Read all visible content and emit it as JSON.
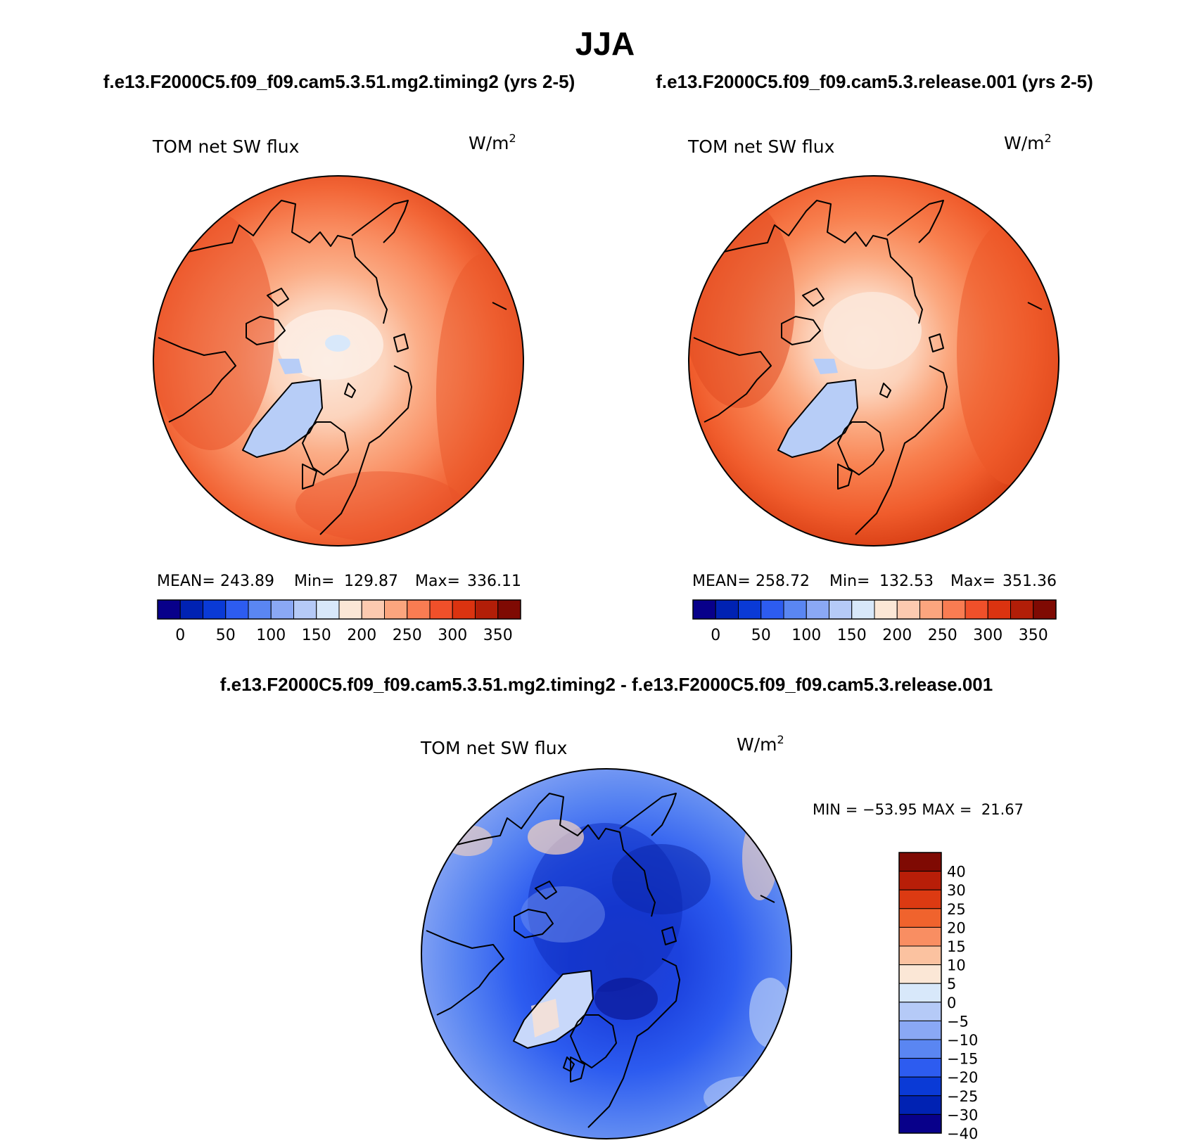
{
  "main_title": "JJA",
  "panel_left": {
    "case_title": "f.e13.F2000C5.f09_f09.cam5.3.51.mg2.timing2 (yrs 2-5)",
    "variable": "TOM net SW flux",
    "units_base": "W/m",
    "units_exp": "2",
    "stats": {
      "mean_label": "MEAN=",
      "mean": "243.89",
      "min_label": "Min=",
      "min": "129.87",
      "max_label": "Max=",
      "max": "336.11"
    }
  },
  "panel_right": {
    "case_title": "f.e13.F2000C5.f09_f09.cam5.3.release.001 (yrs 2-5)",
    "variable": "TOM net SW flux",
    "units_base": "W/m",
    "units_exp": "2",
    "stats": {
      "mean_label": "MEAN=",
      "mean": "258.72",
      "min_label": "Min=",
      "min": "132.53",
      "max_label": "Max=",
      "max": "351.36"
    }
  },
  "panel_diff": {
    "case_title": "f.e13.F2000C5.f09_f09.cam5.3.51.mg2.timing2 - f.e13.F2000C5.f09_f09.cam5.3.release.001",
    "variable": "TOM net SW flux",
    "units_base": "W/m",
    "units_exp": "2",
    "minmax_text": "MIN = −53.95 MAX =  21.67"
  },
  "colorbar_abs": {
    "colors": [
      "#08008a",
      "#0022b3",
      "#0a3ad6",
      "#2d5cf0",
      "#5a86f2",
      "#8aa8f5",
      "#b5caf7",
      "#d8e8fa",
      "#fbe7d6",
      "#fccab0",
      "#fba57e",
      "#f97c52",
      "#f0502a",
      "#db3310",
      "#b21e08",
      "#7f0a03"
    ],
    "labels": [
      "0",
      "50",
      "100",
      "150",
      "200",
      "250",
      "300",
      "350"
    ]
  },
  "colorbar_diff": {
    "colors": [
      "#7f0a03",
      "#b81e08",
      "#dc3a12",
      "#f0632d",
      "#f98e62",
      "#fbc2a0",
      "#fbe7d6",
      "#d8e8fa",
      "#b5caf7",
      "#8aa8f5",
      "#5a86f2",
      "#2d5cf0",
      "#0a3ad6",
      "#0022b3",
      "#08008a"
    ],
    "labels": [
      "40",
      "30",
      "25",
      "20",
      "15",
      "10",
      "5",
      "0",
      "−5",
      "−10",
      "−15",
      "−20",
      "−25",
      "−30",
      "−40"
    ]
  }
}
